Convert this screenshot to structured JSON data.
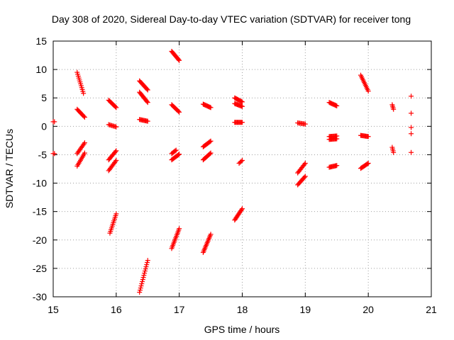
{
  "chart_data": {
    "type": "scatter",
    "title": "Day 308 of 2020, Sidereal Day-to-day VTEC variation (SDTVAR) for receiver tong",
    "xlabel": "GPS time / hours",
    "ylabel": "SDTVAR / TECUs",
    "xlim": [
      15,
      21
    ],
    "ylim": [
      -30,
      15
    ],
    "x_ticks": [
      15,
      16,
      17,
      18,
      19,
      20,
      21
    ],
    "y_ticks": [
      -30,
      -25,
      -20,
      -15,
      -10,
      -5,
      0,
      5,
      10,
      15
    ],
    "grid": true,
    "marker": "+",
    "color": "#ff0000",
    "series": [
      {
        "name": "SDTVAR",
        "segments": [
          {
            "x0": 15.0,
            "y0": 0.8,
            "x1": 15.02,
            "y1": 0.8,
            "n": 2
          },
          {
            "x0": 15.0,
            "y0": -4.8,
            "x1": 15.02,
            "y1": -4.8,
            "n": 2
          },
          {
            "x0": 15.38,
            "y0": 9.5,
            "x1": 15.48,
            "y1": 5.8,
            "n": 12
          },
          {
            "x0": 15.38,
            "y0": 3.0,
            "x1": 15.5,
            "y1": 1.6,
            "n": 10
          },
          {
            "x0": 15.38,
            "y0": -4.8,
            "x1": 15.5,
            "y1": -2.9,
            "n": 10
          },
          {
            "x0": 15.38,
            "y0": -7.0,
            "x1": 15.5,
            "y1": -4.7,
            "n": 10
          },
          {
            "x0": 15.88,
            "y0": 4.6,
            "x1": 16.0,
            "y1": 3.3,
            "n": 10
          },
          {
            "x0": 15.88,
            "y0": 0.3,
            "x1": 16.0,
            "y1": -0.1,
            "n": 8
          },
          {
            "x0": 15.88,
            "y0": -5.9,
            "x1": 16.0,
            "y1": -4.3,
            "n": 10
          },
          {
            "x0": 15.88,
            "y0": -7.8,
            "x1": 16.0,
            "y1": -6.0,
            "n": 10
          },
          {
            "x0": 15.9,
            "y0": -18.8,
            "x1": 16.0,
            "y1": -15.4,
            "n": 12
          },
          {
            "x0": 16.37,
            "y0": 8.0,
            "x1": 16.5,
            "y1": 6.4,
            "n": 12
          },
          {
            "x0": 16.37,
            "y0": 6.0,
            "x1": 16.5,
            "y1": 4.2,
            "n": 12
          },
          {
            "x0": 16.37,
            "y0": 1.2,
            "x1": 16.5,
            "y1": 0.9,
            "n": 10
          },
          {
            "x0": 16.37,
            "y0": -29.2,
            "x1": 16.5,
            "y1": -23.6,
            "n": 16
          },
          {
            "x0": 16.88,
            "y0": 13.2,
            "x1": 17.0,
            "y1": 11.6,
            "n": 12
          },
          {
            "x0": 16.88,
            "y0": 3.8,
            "x1": 17.0,
            "y1": 2.5,
            "n": 10
          },
          {
            "x0": 16.88,
            "y0": -4.8,
            "x1": 16.95,
            "y1": -4.2,
            "n": 6
          },
          {
            "x0": 16.88,
            "y0": -5.9,
            "x1": 17.0,
            "y1": -4.9,
            "n": 10
          },
          {
            "x0": 16.88,
            "y0": -21.5,
            "x1": 17.0,
            "y1": -18.0,
            "n": 14
          },
          {
            "x0": 17.38,
            "y0": 3.9,
            "x1": 17.5,
            "y1": 3.3,
            "n": 10
          },
          {
            "x0": 17.38,
            "y0": -3.6,
            "x1": 17.5,
            "y1": -2.6,
            "n": 10
          },
          {
            "x0": 17.38,
            "y0": -5.9,
            "x1": 17.5,
            "y1": -4.7,
            "n": 10
          },
          {
            "x0": 17.38,
            "y0": -22.2,
            "x1": 17.5,
            "y1": -19.0,
            "n": 14
          },
          {
            "x0": 17.88,
            "y0": 5.0,
            "x1": 18.0,
            "y1": 4.3,
            "n": 10
          },
          {
            "x0": 17.88,
            "y0": 4.0,
            "x1": 18.0,
            "y1": 3.5,
            "n": 10
          },
          {
            "x0": 17.88,
            "y0": 0.7,
            "x1": 18.0,
            "y1": 0.7,
            "n": 10
          },
          {
            "x0": 17.95,
            "y0": -6.5,
            "x1": 18.0,
            "y1": -6.0,
            "n": 4
          },
          {
            "x0": 17.88,
            "y0": -16.5,
            "x1": 18.0,
            "y1": -14.5,
            "n": 12
          },
          {
            "x0": 18.88,
            "y0": 0.6,
            "x1": 19.0,
            "y1": 0.4,
            "n": 8
          },
          {
            "x0": 18.88,
            "y0": -8.2,
            "x1": 19.0,
            "y1": -6.5,
            "n": 10
          },
          {
            "x0": 18.88,
            "y0": -10.3,
            "x1": 19.0,
            "y1": -8.8,
            "n": 10
          },
          {
            "x0": 19.38,
            "y0": 4.2,
            "x1": 19.5,
            "y1": 3.6,
            "n": 10
          },
          {
            "x0": 19.38,
            "y0": -1.8,
            "x1": 19.5,
            "y1": -1.7,
            "n": 10
          },
          {
            "x0": 19.38,
            "y0": -2.3,
            "x1": 19.5,
            "y1": -2.2,
            "n": 10
          },
          {
            "x0": 19.38,
            "y0": -7.2,
            "x1": 19.5,
            "y1": -6.9,
            "n": 10
          },
          {
            "x0": 19.88,
            "y0": 9.0,
            "x1": 20.0,
            "y1": 6.2,
            "n": 12
          },
          {
            "x0": 19.88,
            "y0": -1.6,
            "x1": 20.0,
            "y1": -1.8,
            "n": 10
          },
          {
            "x0": 19.88,
            "y0": -7.4,
            "x1": 20.0,
            "y1": -6.5,
            "n": 10
          },
          {
            "x0": 20.38,
            "y0": 3.8,
            "x1": 20.4,
            "y1": 3.0,
            "n": 4
          },
          {
            "x0": 20.38,
            "y0": -3.7,
            "x1": 20.4,
            "y1": -4.6,
            "n": 4
          },
          {
            "x0": 20.68,
            "y0": 5.3,
            "x1": 20.68,
            "y1": 5.3,
            "n": 1
          },
          {
            "x0": 20.68,
            "y0": 2.3,
            "x1": 20.68,
            "y1": 2.3,
            "n": 1
          },
          {
            "x0": 20.68,
            "y0": -0.2,
            "x1": 20.68,
            "y1": -0.2,
            "n": 1
          },
          {
            "x0": 20.68,
            "y0": -1.3,
            "x1": 20.68,
            "y1": -1.3,
            "n": 1
          },
          {
            "x0": 20.68,
            "y0": -4.6,
            "x1": 20.68,
            "y1": -4.6,
            "n": 1
          }
        ]
      }
    ]
  }
}
